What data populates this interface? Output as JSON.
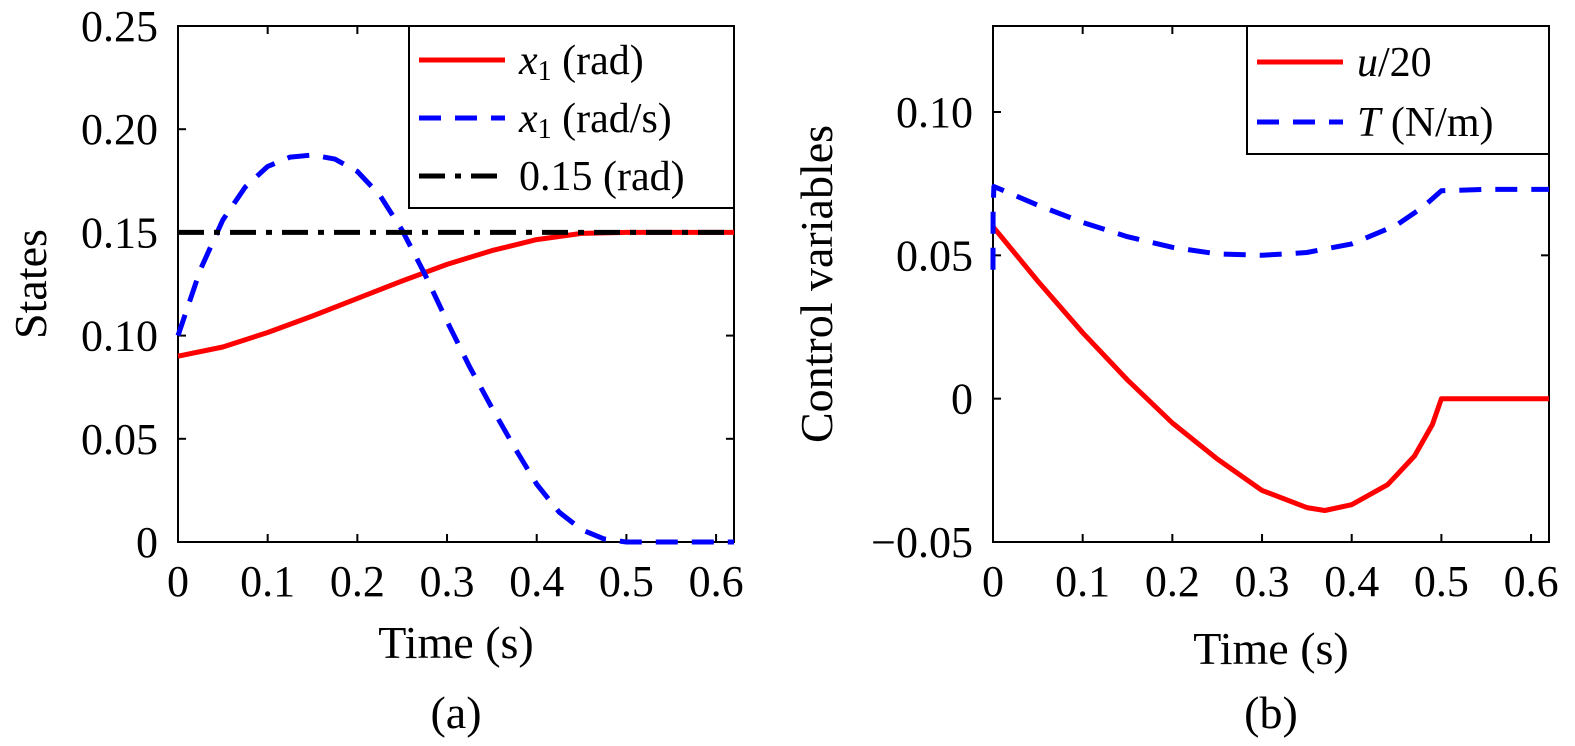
{
  "chart_data": [
    {
      "type": "line",
      "panel": "(a)",
      "xlabel": "Time (s)",
      "ylabel": "States",
      "xlim": [
        0,
        0.62
      ],
      "ylim": [
        0,
        0.25
      ],
      "xticks": [
        "0",
        "0.1",
        "0.2",
        "0.3",
        "0.4",
        "0.5",
        "0.6"
      ],
      "yticks": [
        "0",
        "0.05",
        "0.10",
        "0.15",
        "0.20",
        "0.25"
      ],
      "legend_position": "top-right",
      "series": [
        {
          "name": "x1 (rad)",
          "legend": {
            "var": "x",
            "sub": "1",
            "unit": " (rad)"
          },
          "color": "#ff0000",
          "style": "solid",
          "x": [
            0,
            0.05,
            0.1,
            0.15,
            0.2,
            0.25,
            0.3,
            0.35,
            0.4,
            0.45,
            0.5,
            0.55,
            0.62
          ],
          "y": [
            0.09,
            0.0945,
            0.1015,
            0.1095,
            0.118,
            0.1265,
            0.1345,
            0.1412,
            0.1465,
            0.1495,
            0.15,
            0.15,
            0.15
          ]
        },
        {
          "name": "x1 (rad/s)",
          "legend": {
            "var": "x",
            "sub": "1",
            "unit": " (rad/s)"
          },
          "color": "#0000ff",
          "style": "dashed",
          "x": [
            0,
            0.025,
            0.05,
            0.075,
            0.1,
            0.125,
            0.15,
            0.175,
            0.2,
            0.225,
            0.25,
            0.275,
            0.3,
            0.325,
            0.35,
            0.375,
            0.4,
            0.425,
            0.45,
            0.475,
            0.5,
            0.55,
            0.62
          ],
          "y": [
            0.1,
            0.132,
            0.156,
            0.172,
            0.182,
            0.1865,
            0.1875,
            0.1855,
            0.1795,
            0.168,
            0.151,
            0.13,
            0.107,
            0.085,
            0.065,
            0.046,
            0.028,
            0.0145,
            0.006,
            0.0015,
            0,
            0,
            0
          ]
        },
        {
          "name": "0.15 (rad)",
          "legend": {
            "var": "",
            "sub": "",
            "unit": "0.15 (rad)"
          },
          "color": "#000000",
          "style": "dashdot",
          "x": [
            0,
            0.62
          ],
          "y": [
            0.15,
            0.15
          ]
        }
      ]
    },
    {
      "type": "line",
      "panel": "(b)",
      "xlabel": "Time (s)",
      "ylabel": "Control variables",
      "xlim": [
        0,
        0.62
      ],
      "ylim": [
        -0.05,
        0.13
      ],
      "xticks": [
        "0",
        "0.1",
        "0.2",
        "0.3",
        "0.4",
        "0.5",
        "0.6"
      ],
      "yticks": [
        "−0.05",
        "0",
        "0.05",
        "0.10"
      ],
      "legend_position": "top-right",
      "series": [
        {
          "name": "u/20",
          "legend": {
            "var": "u",
            "sub": "",
            "unit": "/20"
          },
          "color": "#ff0000",
          "style": "solid",
          "x": [
            0,
            0.05,
            0.1,
            0.15,
            0.2,
            0.25,
            0.3,
            0.35,
            0.37,
            0.4,
            0.44,
            0.47,
            0.49,
            0.5,
            0.55,
            0.62
          ],
          "y": [
            0.06,
            0.041,
            0.023,
            0.0065,
            -0.0085,
            -0.021,
            -0.032,
            -0.038,
            -0.039,
            -0.037,
            -0.03,
            -0.02,
            -0.009,
            0,
            0,
            0
          ]
        },
        {
          "name": "T (N/m)",
          "legend": {
            "var": "T",
            "sub": "",
            "unit": " (N/m)"
          },
          "color": "#0000ff",
          "style": "dashed",
          "x": [
            0,
            0.0001,
            0.001,
            0.05,
            0.1,
            0.15,
            0.2,
            0.25,
            0.3,
            0.35,
            0.4,
            0.45,
            0.48,
            0.5,
            0.55,
            0.62
          ],
          "y": [
            0.045,
            0.066,
            0.074,
            0.0675,
            0.0615,
            0.0565,
            0.0528,
            0.0505,
            0.05,
            0.051,
            0.054,
            0.0605,
            0.067,
            0.0725,
            0.073,
            0.073
          ]
        }
      ]
    }
  ],
  "captions": [
    "(a)",
    "(b)"
  ]
}
